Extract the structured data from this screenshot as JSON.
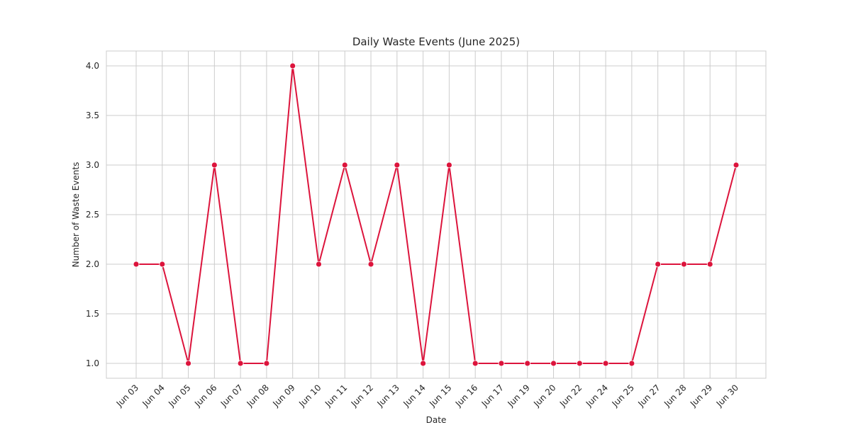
{
  "chart_data": {
    "type": "line",
    "title": "Daily Waste Events (June 2025)",
    "xlabel": "Date",
    "ylabel": "Number of Waste Events",
    "categories": [
      "Jun 03",
      "Jun 04",
      "Jun 05",
      "Jun 06",
      "Jun 07",
      "Jun 08",
      "Jun 09",
      "Jun 10",
      "Jun 11",
      "Jun 12",
      "Jun 13",
      "Jun 14",
      "Jun 15",
      "Jun 16",
      "Jun 17",
      "Jun 19",
      "Jun 20",
      "Jun 22",
      "Jun 24",
      "Jun 25",
      "Jun 27",
      "Jun 28",
      "Jun 29",
      "Jun 30"
    ],
    "values": [
      2,
      2,
      1,
      3,
      1,
      1,
      4,
      2,
      3,
      2,
      3,
      1,
      3,
      1,
      1,
      1,
      1,
      1,
      1,
      1,
      2,
      2,
      2,
      3
    ],
    "ylim": [
      0.85,
      4.15
    ],
    "yticks": [
      "1.0",
      "1.5",
      "2.0",
      "2.5",
      "3.0",
      "3.5",
      "4.0"
    ],
    "grid": true,
    "line_color": "#dc143c",
    "grid_color": "#cccccc"
  }
}
